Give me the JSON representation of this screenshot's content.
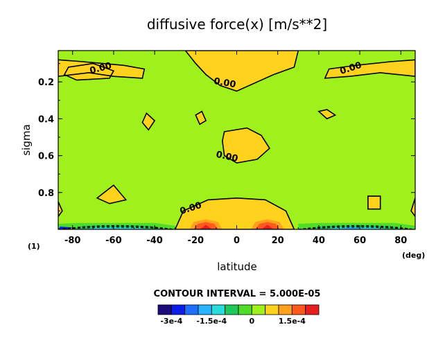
{
  "chart_data": {
    "type": "contour",
    "title": "diffusive force(x) [m/s**2]",
    "xlabel": "latitude",
    "ylabel": "sigma",
    "x_unit": "(deg)",
    "panel_label": "(1)",
    "xlim": [
      -87,
      87
    ],
    "ylim": [
      1.0,
      0.03
    ],
    "xticks": [
      -80,
      -60,
      -40,
      -20,
      0,
      20,
      40,
      60,
      80
    ],
    "yticks": [
      0.2,
      0.4,
      0.6,
      0.8
    ],
    "contour_interval_text": "CONTOUR INTERVAL = 5.000E-05",
    "contour_labels": [
      "0.00",
      "0.00",
      "0.00",
      "0.00",
      "0.00"
    ],
    "colorbar": {
      "tick_labels": [
        "-3e-4",
        "-1.5e-4",
        "0",
        "1.5e-4"
      ],
      "levels": [
        -0.00035,
        -0.0003,
        -0.00025,
        -0.0002,
        -0.00015,
        -0.0001,
        -5e-05,
        0,
        5e-05,
        0.0001,
        0.00015,
        0.0002
      ],
      "colors": [
        "#1e0a78",
        "#0a1ee6",
        "#1e6eff",
        "#28b4ff",
        "#28dcdc",
        "#1ec85a",
        "#50dc28",
        "#a0f01e",
        "#ffd21e",
        "#ffa01e",
        "#ff5a1e",
        "#e61e1e"
      ]
    },
    "background_color": "#a0f01e",
    "positive_color": "#ffd21e",
    "regions": [
      {
        "level": "positive",
        "description_lat": [
          -87,
          -45
        ],
        "sigma": [
          0.08,
          0.2
        ]
      },
      {
        "level": "positive",
        "description_lat": [
          -25,
          30
        ],
        "sigma": [
          0.03,
          0.25
        ]
      },
      {
        "level": "positive",
        "description_lat": [
          42,
          87
        ],
        "sigma": [
          0.08,
          0.2
        ]
      },
      {
        "level": "positive",
        "description_lat": [
          -6,
          16
        ],
        "sigma": [
          0.45,
          0.64
        ]
      },
      {
        "level": "positive",
        "description_lat": [
          -30,
          28
        ],
        "sigma": [
          0.83,
          1.0
        ]
      },
      {
        "level": "max",
        "description_lat": [
          -22,
          -8
        ],
        "sigma": [
          0.96,
          1.0
        ]
      },
      {
        "level": "max",
        "description_lat": [
          8,
          22
        ],
        "sigma": [
          0.96,
          1.0
        ]
      }
    ]
  }
}
